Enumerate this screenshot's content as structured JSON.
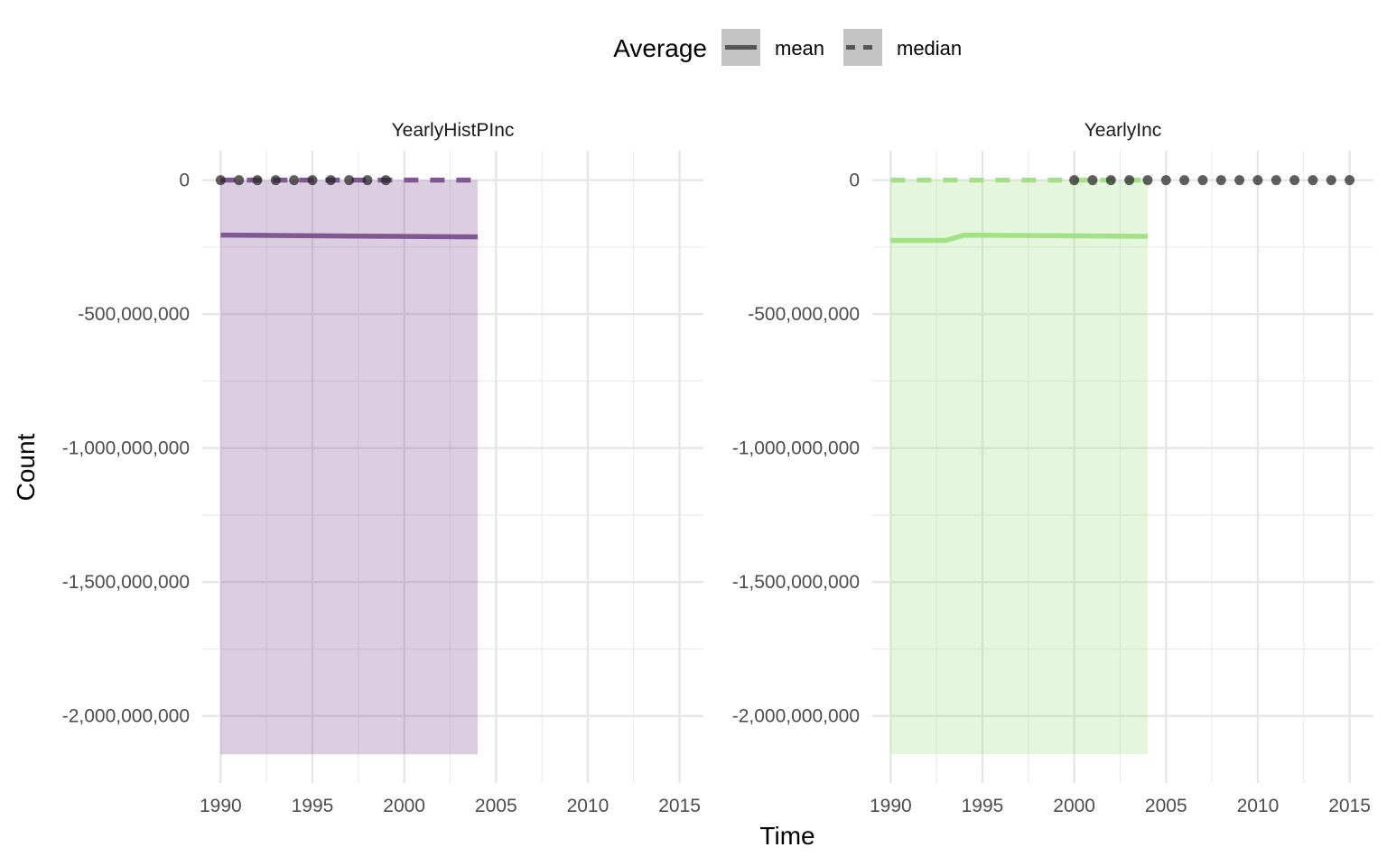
{
  "chart_data": {
    "type": "line",
    "xlabel": "Time",
    "ylabel": "Count",
    "x_ticks": [
      1990,
      1995,
      2000,
      2005,
      2010,
      2015
    ],
    "y_ticks": [
      0,
      -500000000,
      -1000000000,
      -1500000000,
      -2000000000
    ],
    "y_tick_labels": [
      "0",
      "-500,000,000",
      "-1,000,000,000",
      "-1,500,000,000",
      "-2,000,000,000"
    ],
    "xlim": [
      1989,
      2016.3
    ],
    "ylim": [
      -2250000000,
      110000000
    ],
    "grid": true,
    "legend": {
      "title": "Average",
      "position": "top",
      "entries": [
        {
          "label": "mean",
          "linetype": "solid"
        },
        {
          "label": "median",
          "linetype": "dashed"
        }
      ]
    },
    "panels": [
      {
        "strip": "YearlyHistPInc",
        "color": "#7b4f8e",
        "ribbon": {
          "x": [
            1990,
            2004
          ],
          "ymin": -2143000000,
          "ymax": 0,
          "color": "#7b4f8e"
        },
        "series": [
          {
            "name": "mean",
            "linetype": "solid",
            "x": [
              1990,
              2004
            ],
            "y": [
              -205000000,
              -212000000
            ]
          },
          {
            "name": "median",
            "linetype": "dashed",
            "x": [
              1990,
              2004
            ],
            "y": [
              0,
              0
            ]
          }
        ],
        "points": {
          "x": [
            1990,
            1991,
            1992,
            1993,
            1994,
            1995,
            1996,
            1997,
            1998,
            1999
          ],
          "y": [
            0,
            0,
            0,
            0,
            0,
            0,
            0,
            0,
            0,
            0
          ]
        }
      },
      {
        "strip": "YearlyInc",
        "color": "#9fdf83",
        "ribbon": {
          "x": [
            1990,
            2004
          ],
          "ymin": -2143000000,
          "ymax": 0,
          "color": "#9fdf83"
        },
        "series": [
          {
            "name": "mean",
            "linetype": "solid",
            "x": [
              1990,
              1993,
              1994,
              2004
            ],
            "y": [
              -225000000,
              -225000000,
              -205000000,
              -210000000
            ]
          },
          {
            "name": "median",
            "linetype": "dashed",
            "x": [
              1990,
              2004
            ],
            "y": [
              0,
              0
            ]
          }
        ],
        "points": {
          "x": [
            2000,
            2001,
            2002,
            2003,
            2004,
            2005,
            2006,
            2007,
            2008,
            2009,
            2010,
            2011,
            2012,
            2013,
            2014,
            2015
          ],
          "y": [
            0,
            0,
            0,
            0,
            0,
            0,
            0,
            0,
            0,
            0,
            0,
            0,
            0,
            0,
            0,
            0
          ]
        }
      }
    ]
  }
}
